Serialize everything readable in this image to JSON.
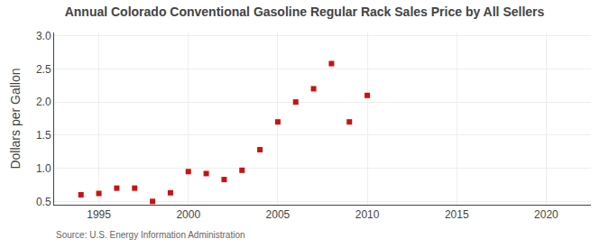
{
  "chart_data": {
    "type": "scatter",
    "title": "Annual Colorado Conventional Gasoline Regular Rack Sales Price by All Sellers",
    "ylabel": "Dollars per Gallon",
    "source": "Source: U.S. Energy Information Administration",
    "x": [
      1994,
      1995,
      1996,
      1997,
      1998,
      1999,
      2000,
      2001,
      2002,
      2003,
      2004,
      2005,
      2006,
      2007,
      2008,
      2009,
      2010
    ],
    "values": [
      0.6,
      0.62,
      0.7,
      0.7,
      0.5,
      0.63,
      0.95,
      0.92,
      0.83,
      0.97,
      1.28,
      1.7,
      2.0,
      2.2,
      2.58,
      1.7,
      2.1
    ],
    "color": "#cc1111",
    "marker": "square",
    "xlim": [
      1992.5,
      2022.5
    ],
    "ylim": [
      0.45,
      3.05
    ],
    "xticks": [
      1995,
      2000,
      2005,
      2010,
      2015,
      2020
    ],
    "yticks": [
      0.5,
      {
        "value": 1.0,
        "label": "1.0"
      },
      1.5,
      {
        "value": 2.0,
        "label": "2.0"
      },
      2.5,
      {
        "value": 3.0,
        "label": "3.0"
      }
    ],
    "grid": true
  }
}
